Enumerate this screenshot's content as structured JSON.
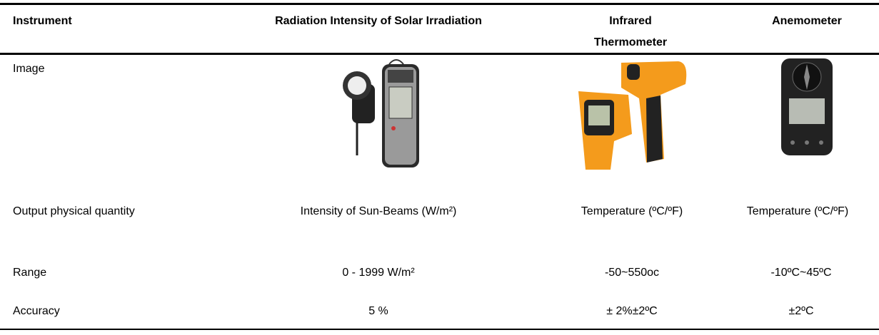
{
  "table": {
    "header": [
      "Instrument",
      "Radiation Intensity of Solar Irradiation",
      "Infrared Thermometer",
      "Anemometer"
    ],
    "rows": [
      [
        "Image"
      ],
      [
        "Output physical quantity",
        "Intensity of Sun-Beams (W/m²)",
        "Temperature (ºC/ºF)",
        "Temperature  (ºC/ºF)"
      ],
      [
        "Range",
        "0 - 1999 W/m²",
        "-50~550oc",
        "-10ºC~45ºC"
      ],
      [
        "Accuracy",
        "5 %",
        "± 2%±2ºC",
        "±2ºC"
      ]
    ]
  }
}
